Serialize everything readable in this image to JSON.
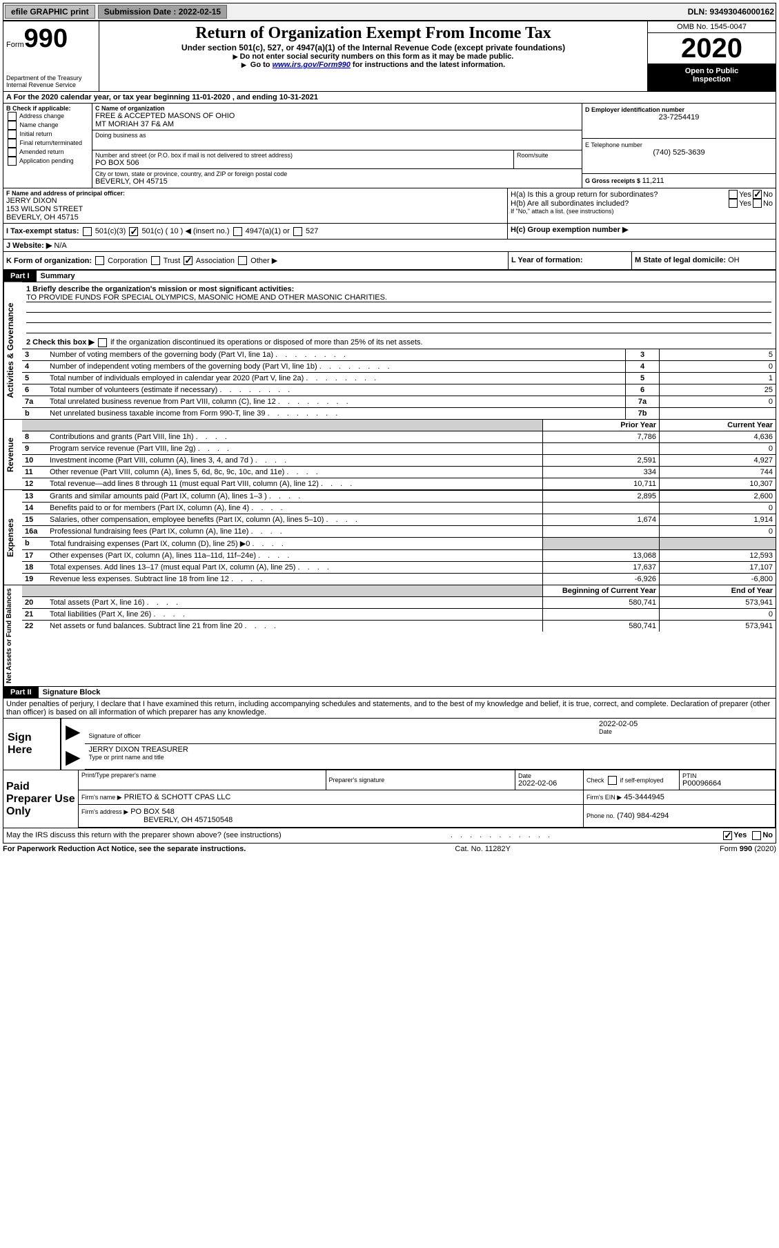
{
  "topbar": {
    "efile_label": "efile GRAPHIC print",
    "submission_label": "Submission Date : 2022-02-15",
    "dln": "DLN: 93493046000162"
  },
  "header": {
    "form_prefix": "Form",
    "form_number": "990",
    "dept": "Department of the Treasury",
    "irs": "Internal Revenue Service",
    "title": "Return of Organization Exempt From Income Tax",
    "subtitle": "Under section 501(c), 527, or 4947(a)(1) of the Internal Revenue Code (except private foundations)",
    "note1": "Do not enter social security numbers on this form as it may be made public.",
    "note2_pre": "Go to ",
    "note2_link": "www.irs.gov/Form990",
    "note2_post": " for instructions and the latest information.",
    "omb": "OMB No. 1545-0047",
    "year": "2020",
    "open1": "Open to Public",
    "open2": "Inspection"
  },
  "periodA": {
    "prefix": "A For the 2020 calendar year, or tax year beginning ",
    "begin": "11-01-2020",
    "mid": " , and ending ",
    "end": "10-31-2021"
  },
  "boxB": {
    "title": "B Check if applicable:",
    "opts": [
      "Address change",
      "Name change",
      "Initial return",
      "Final return/terminated",
      "Amended return",
      "Application pending"
    ]
  },
  "boxC": {
    "name_label": "C Name of organization",
    "name": "FREE & ACCEPTED MASONS OF OHIO\nMT MORIAH 37 F& AM",
    "dba_label": "Doing business as",
    "dba": "",
    "addr_label": "Number and street (or P.O. box if mail is not delivered to street address)",
    "room_label": "Room/suite",
    "addr": "PO BOX 506",
    "city_label": "City or town, state or province, country, and ZIP or foreign postal code",
    "city": "BEVERLY, OH  45715"
  },
  "boxD": {
    "label": "D Employer identification number",
    "ein": "23-7254419"
  },
  "boxE": {
    "label": "E Telephone number",
    "phone": "(740) 525-3639"
  },
  "boxG": {
    "label": "G Gross receipts $ ",
    "amount": "11,211"
  },
  "boxF": {
    "label": "F Name and address of principal officer:",
    "name": "JERRY DIXON",
    "addr1": "153 WILSON STREET",
    "addr2": "BEVERLY, OH  45715"
  },
  "boxH": {
    "a_label": "H(a)  Is this a group return for subordinates?",
    "b_label": "H(b)  Are all subordinates included?",
    "b_note": "If \"No,\" attach a list. (see instructions)",
    "c_label": "H(c)  Group exemption number ▶",
    "yes": "Yes",
    "no": "No"
  },
  "boxI": {
    "label": "I   Tax-exempt status:",
    "opt1": "501(c)(3)",
    "opt2": "501(c) ( 10 ) ◀ (insert no.)",
    "opt3": "4947(a)(1) or",
    "opt4": "527"
  },
  "boxJ": {
    "label": "J   Website: ▶",
    "value": "  N/A"
  },
  "boxK": {
    "label": "K Form of organization:",
    "opt1": "Corporation",
    "opt2": "Trust",
    "opt3": "Association",
    "opt4": "Other ▶"
  },
  "boxL": {
    "label": "L Year of formation:",
    "value": ""
  },
  "boxM": {
    "label": "M State of legal domicile: ",
    "value": "OH"
  },
  "part1": {
    "header": "Part I",
    "title": "Summary",
    "q1_label": "1   Briefly describe the organization's mission or most significant activities:",
    "q1_value": "TO PROVIDE FUNDS FOR SPECIAL OLYMPICS, MASONIC HOME AND OTHER MASONIC CHARITIES.",
    "q2_label": "2   Check this box ▶",
    "q2_post": " if the organization discontinued its operations or disposed of more than 25% of its net assets.",
    "vlabel_ag": "Activities & Governance",
    "vlabel_rev": "Revenue",
    "vlabel_exp": "Expenses",
    "vlabel_net": "Net Assets or Fund Balances",
    "rows_top": [
      {
        "n": "3",
        "desc": "Number of voting members of the governing body (Part VI, line 1a)",
        "box": "3",
        "val": "5"
      },
      {
        "n": "4",
        "desc": "Number of independent voting members of the governing body (Part VI, line 1b)",
        "box": "4",
        "val": "0"
      },
      {
        "n": "5",
        "desc": "Total number of individuals employed in calendar year 2020 (Part V, line 2a)",
        "box": "5",
        "val": "1"
      },
      {
        "n": "6",
        "desc": "Total number of volunteers (estimate if necessary)",
        "box": "6",
        "val": "25"
      },
      {
        "n": "7a",
        "desc": "Total unrelated business revenue from Part VIII, column (C), line 12",
        "box": "7a",
        "val": "0"
      },
      {
        "n": "b",
        "desc": "Net unrelated business taxable income from Form 990-T, line 39",
        "box": "7b",
        "val": ""
      }
    ],
    "col_prior": "Prior Year",
    "col_current": "Current Year",
    "col_begin": "Beginning of Current Year",
    "col_end": "End of Year",
    "rows_rev": [
      {
        "n": "8",
        "desc": "Contributions and grants (Part VIII, line 1h)",
        "v1": "7,786",
        "v2": "4,636"
      },
      {
        "n": "9",
        "desc": "Program service revenue (Part VIII, line 2g)",
        "v1": "",
        "v2": "0"
      },
      {
        "n": "10",
        "desc": "Investment income (Part VIII, column (A), lines 3, 4, and 7d )",
        "v1": "2,591",
        "v2": "4,927"
      },
      {
        "n": "11",
        "desc": "Other revenue (Part VIII, column (A), lines 5, 6d, 8c, 9c, 10c, and 11e)",
        "v1": "334",
        "v2": "744"
      },
      {
        "n": "12",
        "desc": "Total revenue—add lines 8 through 11 (must equal Part VIII, column (A), line 12)",
        "v1": "10,711",
        "v2": "10,307"
      }
    ],
    "rows_exp": [
      {
        "n": "13",
        "desc": "Grants and similar amounts paid (Part IX, column (A), lines 1–3 )",
        "v1": "2,895",
        "v2": "2,600"
      },
      {
        "n": "14",
        "desc": "Benefits paid to or for members (Part IX, column (A), line 4)",
        "v1": "",
        "v2": "0"
      },
      {
        "n": "15",
        "desc": "Salaries, other compensation, employee benefits (Part IX, column (A), lines 5–10)",
        "v1": "1,674",
        "v2": "1,914"
      },
      {
        "n": "16a",
        "desc": "Professional fundraising fees (Part IX, column (A), line 11e)",
        "v1": "",
        "v2": "0"
      },
      {
        "n": "b",
        "desc": "Total fundraising expenses (Part IX, column (D), line 25) ▶0",
        "v1": "__shade__",
        "v2": "__shade__"
      },
      {
        "n": "17",
        "desc": "Other expenses (Part IX, column (A), lines 11a–11d, 11f–24e)",
        "v1": "13,068",
        "v2": "12,593"
      },
      {
        "n": "18",
        "desc": "Total expenses. Add lines 13–17 (must equal Part IX, column (A), line 25)",
        "v1": "17,637",
        "v2": "17,107"
      },
      {
        "n": "19",
        "desc": "Revenue less expenses. Subtract line 18 from line 12",
        "v1": "-6,926",
        "v2": "-6,800"
      }
    ],
    "rows_net": [
      {
        "n": "20",
        "desc": "Total assets (Part X, line 16)",
        "v1": "580,741",
        "v2": "573,941"
      },
      {
        "n": "21",
        "desc": "Total liabilities (Part X, line 26)",
        "v1": "",
        "v2": "0"
      },
      {
        "n": "22",
        "desc": "Net assets or fund balances. Subtract line 21 from line 20",
        "v1": "580,741",
        "v2": "573,941"
      }
    ]
  },
  "part2": {
    "header": "Part II",
    "title": "Signature Block",
    "jurat": "Under penalties of perjury, I declare that I have examined this return, including accompanying schedules and statements, and to the best of my knowledge and belief, it is true, correct, and complete. Declaration of preparer (other than officer) is based on all information of which preparer has any knowledge.",
    "sign_here": "Sign Here",
    "sig_officer": "Signature of officer",
    "sig_date_label": "Date",
    "sig_date": "2022-02-05",
    "sig_name": "JERRY DIXON  TREASURER",
    "sig_name_label": "Type or print name and title",
    "paid_prep": "Paid Preparer Use Only",
    "prep_name_label": "Print/Type preparer's name",
    "prep_sig_label": "Preparer's signature",
    "prep_date_label": "Date",
    "prep_date": "2022-02-06",
    "prep_check_label": "Check",
    "prep_self": "if self-employed",
    "ptin_label": "PTIN",
    "ptin": "P00096664",
    "firm_name_label": "Firm's name     ▶",
    "firm_name": "PRIETO & SCHOTT CPAS LLC",
    "firm_ein_label": "Firm's EIN ▶",
    "firm_ein": "45-3444945",
    "firm_addr_label": "Firm's address ▶",
    "firm_addr1": "PO BOX 548",
    "firm_addr2": "BEVERLY, OH  457150548",
    "firm_phone_label": "Phone no.",
    "firm_phone": "(740) 984-4294",
    "discuss": "May the IRS discuss this return with the preparer shown above? (see instructions)"
  },
  "footer": {
    "paperwork": "For Paperwork Reduction Act Notice, see the separate instructions.",
    "catno": "Cat. No. 11282Y",
    "form": "Form 990 (2020)"
  }
}
